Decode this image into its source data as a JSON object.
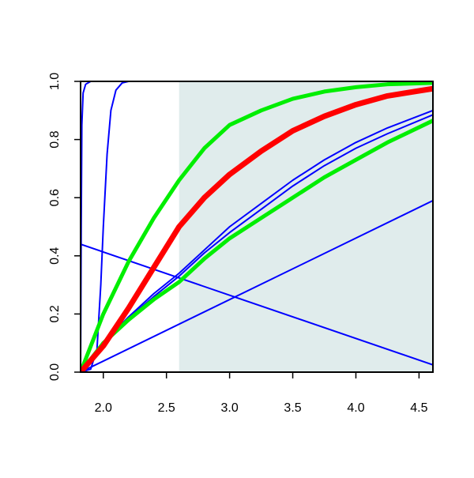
{
  "chart_data": {
    "type": "line",
    "x": [
      1.82,
      2.0,
      2.2,
      2.4,
      2.6,
      2.8,
      3.0,
      3.25,
      3.5,
      3.75,
      4.0,
      4.25,
      4.61
    ],
    "xlim": [
      1.82,
      4.61
    ],
    "ylim": [
      0,
      1
    ],
    "xticks": [
      {
        "value": 2.0,
        "label": "2.0"
      },
      {
        "value": 2.5,
        "label": "2.5"
      },
      {
        "value": 3.0,
        "label": "3.0"
      },
      {
        "value": 3.5,
        "label": "3.5"
      },
      {
        "value": 4.0,
        "label": "4.0"
      },
      {
        "value": 4.5,
        "label": "4.5"
      }
    ],
    "yticks": [
      {
        "value": 0,
        "label": "0.0"
      },
      {
        "value": 0.2,
        "label": "0.2"
      },
      {
        "value": 0.4,
        "label": "0.4"
      },
      {
        "value": 0.6,
        "label": "0.6"
      },
      {
        "value": 0.8,
        "label": "0.8"
      },
      {
        "value": 1,
        "label": "1.0"
      }
    ],
    "shade": {
      "x": [
        2.6,
        4.61
      ],
      "color": "#e0ecec"
    },
    "series": [
      {
        "color": "#0000ff",
        "width": 2,
        "x": [
          1.82,
          1.825,
          1.83,
          1.84,
          1.86,
          1.9,
          2.0,
          4.61
        ],
        "values": [
          0,
          0.5,
          0.85,
          0.96,
          0.99,
          1,
          1,
          1
        ]
      },
      {
        "color": "#0000ff",
        "width": 2,
        "x": [
          1.82,
          1.9,
          1.95,
          1.98,
          2.0,
          2.03,
          2.06,
          2.1,
          2.15,
          2.2,
          4.61
        ],
        "values": [
          0,
          0.01,
          0.08,
          0.3,
          0.5,
          0.75,
          0.9,
          0.97,
          0.995,
          1,
          1
        ]
      },
      {
        "color": "#0000ff",
        "width": 2,
        "x": [
          1.82,
          4.61
        ],
        "values": [
          0,
          0.59
        ]
      },
      {
        "color": "#0000ff",
        "width": 2,
        "x": [
          1.82,
          4.61
        ],
        "values": [
          0.44,
          0.025
        ]
      },
      {
        "color": "#0000ff",
        "width": 2,
        "values": [
          0,
          0.1,
          0.19,
          0.27,
          0.34,
          0.42,
          0.5,
          0.58,
          0.66,
          0.73,
          0.79,
          0.84,
          0.9
        ]
      },
      {
        "color": "#0000ff",
        "width": 2,
        "values": [
          0,
          0.1,
          0.185,
          0.26,
          0.33,
          0.41,
          0.48,
          0.56,
          0.64,
          0.71,
          0.77,
          0.82,
          0.885
        ]
      },
      {
        "color": "#00ee00",
        "width": 5,
        "values": [
          0,
          0.2,
          0.38,
          0.53,
          0.66,
          0.77,
          0.85,
          0.9,
          0.94,
          0.965,
          0.98,
          0.99,
          0.995
        ]
      },
      {
        "color": "#00ee00",
        "width": 5,
        "values": [
          0,
          0.1,
          0.18,
          0.25,
          0.31,
          0.39,
          0.46,
          0.53,
          0.6,
          0.67,
          0.73,
          0.79,
          0.865
        ]
      },
      {
        "color": "#ff0000",
        "width": 7,
        "values": [
          0,
          0.09,
          0.22,
          0.36,
          0.5,
          0.6,
          0.68,
          0.76,
          0.83,
          0.88,
          0.92,
          0.95,
          0.975
        ]
      }
    ]
  }
}
